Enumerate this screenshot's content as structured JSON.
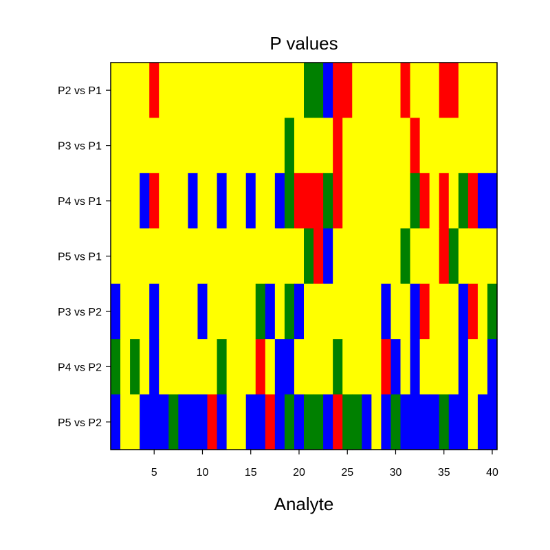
{
  "chart_data": {
    "type": "heatmap",
    "title": "P values",
    "xlabel": "Analyte",
    "ylabel": "",
    "xlim": [
      0.5,
      40.5
    ],
    "x_ticks": [
      5,
      10,
      15,
      20,
      25,
      30,
      35,
      40
    ],
    "grid": false,
    "legend": "none",
    "colors": {
      "Y": "#ffff00",
      "R": "#ff0000",
      "G": "#008000",
      "B": "#0000ff"
    },
    "columns": 40,
    "rows": [
      {
        "label": "P2 vs P1",
        "cells": "YYYYRYYYYYYYYYYYYYYYGGBRRYYYYYRYYYRRYYYY"
      },
      {
        "label": "P3 vs P1",
        "cells": "YYYYYYYYYYYYYYYYYYGYYYYRYYYYYYYRYYYYYYYY"
      },
      {
        "label": "P4 vs P1",
        "cells": "YYYBRYYYBYYBYYBYYBGRRRGRYYYYYYYGRYRYGRBB"
      },
      {
        "label": "P5 vs P1",
        "cells": "YYYYYYYYYYYYYYYYYYYYGRBYYYYYYYGYYYRGYYYY"
      },
      {
        "label": "P3 vs P2",
        "cells": "BYYYBYYYYBYYYYYGBYGBYYYYYYYYBYYBRYYYBRYG"
      },
      {
        "label": "P4 vs P2",
        "cells": "GYGYBYYYYYYGYYYRYBBYYYYGYYYYRBYBYYYYBYYB"
      },
      {
        "label": "P5 vs P2",
        "cells": "BYYBBBGBBBRBYYBBRBGBGGBRGGBYBGBBBBGBBYBB"
      }
    ]
  }
}
